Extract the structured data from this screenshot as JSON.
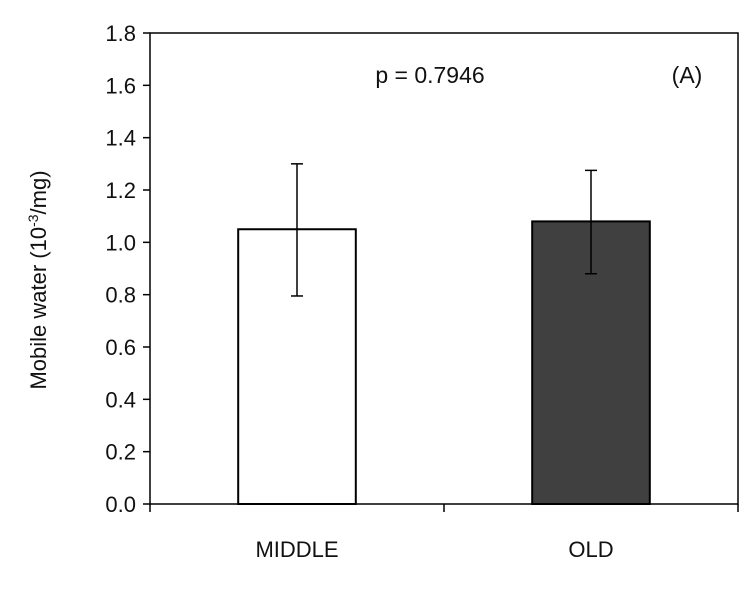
{
  "chart_data": {
    "type": "bar",
    "categories": [
      "MIDDLE",
      "OLD"
    ],
    "values": [
      1.05,
      1.08
    ],
    "error_upper": [
      1.3,
      1.275
    ],
    "error_lower": [
      0.795,
      0.88
    ],
    "bar_colors": [
      "#ffffff",
      "#404040"
    ],
    "ylabel_main": "Mobile water (10",
    "ylabel_sup": "-3",
    "ylabel_end": "/mg)",
    "ylim": [
      0,
      1.8
    ],
    "yticks": [
      "0.0",
      "0.2",
      "0.4",
      "0.6",
      "0.8",
      "1.0",
      "1.2",
      "1.4",
      "1.6",
      "1.8"
    ],
    "grid": false,
    "annotations": {
      "pvalue": "p = 0.7946",
      "panel": "(A)"
    }
  }
}
